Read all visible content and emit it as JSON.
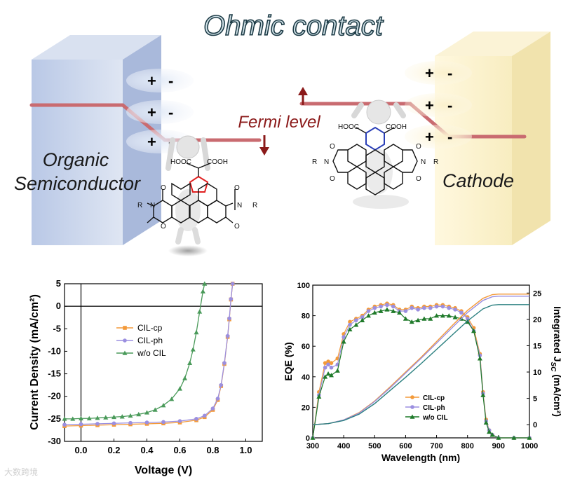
{
  "schematic": {
    "title": "Ohmic contact",
    "fermi_label": "Fermi level",
    "left_block_label_1": "Organic",
    "left_block_label_2": "Semiconductor",
    "right_block_label": "Cathode",
    "charge_plus": "+",
    "charge_minus": "-",
    "mol_left": {
      "top_left": "HOOC",
      "top_right": "COOH",
      "r_left": "R",
      "r_right": "R",
      "n": "N",
      "o": "O"
    },
    "mol_right": {
      "top_left": "HOOC",
      "top_right": "COOH",
      "r_left": "R",
      "r_right": "R",
      "n": "N",
      "o": "O"
    },
    "colors": {
      "left_block": "#c5d2e8",
      "right_block": "#fbf2cf",
      "fermi_line": "#c96b70",
      "fermi_text": "#8b1a1a",
      "arrow": "#8b1a1a",
      "highlight_ring": "#e02020"
    }
  },
  "chart_data": [
    {
      "type": "line",
      "xlabel": "Voltage (V)",
      "ylabel": "Current Density (mA/cm²)",
      "xlim": [
        -0.1,
        1.1
      ],
      "ylim": [
        -30,
        5
      ],
      "xticks": [
        "0.0",
        "0.2",
        "0.4",
        "0.6",
        "0.8",
        "1.0"
      ],
      "xtick_values": [
        0,
        0.2,
        0.4,
        0.6,
        0.8,
        1.0
      ],
      "yticks": [
        "5",
        "0",
        "-5",
        "-10",
        "-15",
        "-20",
        "-25",
        "-30"
      ],
      "ytick_values": [
        5,
        0,
        -5,
        -10,
        -15,
        -20,
        -25,
        -30
      ],
      "legend_position": "center-left",
      "series": [
        {
          "name": "CIL-cp",
          "color": "#f39a3a",
          "marker": "square",
          "x": [
            -0.1,
            0.0,
            0.1,
            0.2,
            0.3,
            0.4,
            0.5,
            0.6,
            0.7,
            0.75,
            0.8,
            0.83,
            0.85,
            0.87,
            0.89,
            0.9,
            0.91,
            0.92
          ],
          "y": [
            -26.6,
            -26.5,
            -26.4,
            -26.3,
            -26.2,
            -26.1,
            -26.0,
            -25.8,
            -25.3,
            -24.6,
            -23.0,
            -20.8,
            -17.7,
            -12.8,
            -6.8,
            -2.9,
            1.5,
            5.0
          ]
        },
        {
          "name": "CIL-ph",
          "color": "#9b8fe0",
          "marker": "circle",
          "x": [
            -0.1,
            0.0,
            0.1,
            0.2,
            0.3,
            0.4,
            0.5,
            0.6,
            0.7,
            0.75,
            0.8,
            0.83,
            0.85,
            0.87,
            0.89,
            0.9,
            0.91,
            0.92
          ],
          "y": [
            -26.3,
            -26.2,
            -26.1,
            -26.0,
            -25.9,
            -25.8,
            -25.7,
            -25.5,
            -25.0,
            -24.3,
            -22.7,
            -20.5,
            -17.5,
            -12.6,
            -6.6,
            -2.7,
            1.6,
            5.0
          ]
        },
        {
          "name": "w/o CIL",
          "color": "#4a9a5a",
          "marker": "triangle",
          "x": [
            -0.1,
            -0.05,
            0.0,
            0.05,
            0.1,
            0.15,
            0.2,
            0.25,
            0.3,
            0.35,
            0.4,
            0.45,
            0.5,
            0.55,
            0.6,
            0.63,
            0.66,
            0.68,
            0.7,
            0.72,
            0.74,
            0.75
          ],
          "y": [
            -25.0,
            -25.0,
            -24.9,
            -24.9,
            -24.8,
            -24.7,
            -24.6,
            -24.5,
            -24.3,
            -24.0,
            -23.6,
            -23.0,
            -22.0,
            -20.6,
            -18.3,
            -16.0,
            -12.6,
            -9.6,
            -5.8,
            -1.2,
            3.3,
            5.0
          ]
        }
      ]
    },
    {
      "type": "line",
      "xlabel": "Wavelength (nm)",
      "ylabel_left": "EQE (%)",
      "ylabel_right": "Integrated J",
      "ylabel_right_sub": "SC",
      "ylabel_right_unit": " (mA/cm²)",
      "xlim": [
        300,
        1000
      ],
      "ylim_left": [
        0,
        100
      ],
      "ylim_right": [
        -2.5,
        26.5
      ],
      "xticks": [
        "300",
        "400",
        "500",
        "600",
        "700",
        "800",
        "900",
        "1000"
      ],
      "xtick_values": [
        300,
        400,
        500,
        600,
        700,
        800,
        900,
        1000
      ],
      "yticks_left": [
        "0",
        "20",
        "40",
        "60",
        "80",
        "100"
      ],
      "ytick_values_left": [
        0,
        20,
        40,
        60,
        80,
        100
      ],
      "yticks_right": [
        "0",
        "5",
        "10",
        "15",
        "20",
        "25"
      ],
      "ytick_values_right": [
        0,
        5,
        10,
        15,
        20,
        25
      ],
      "legend_position": "bottom-center",
      "series": [
        {
          "name": "CIL-cp",
          "color": "#f39a3a",
          "marker": "circle",
          "axis": "left",
          "x": [
            300,
            320,
            340,
            350,
            360,
            380,
            400,
            420,
            440,
            460,
            480,
            500,
            520,
            540,
            560,
            580,
            600,
            620,
            640,
            660,
            680,
            700,
            720,
            740,
            760,
            780,
            800,
            820,
            840,
            850,
            860,
            870,
            880,
            900,
            950,
            1000
          ],
          "y": [
            0,
            30,
            49,
            50,
            49,
            52,
            68,
            76,
            78,
            80,
            84,
            86,
            87,
            88,
            87,
            84,
            84,
            86,
            85,
            86,
            86,
            87,
            87,
            86,
            85,
            83,
            79,
            72,
            55,
            30,
            12,
            5,
            2,
            0,
            0,
            0
          ]
        },
        {
          "name": "CIL-ph",
          "color": "#9b8fe0",
          "marker": "circle",
          "axis": "left",
          "x": [
            300,
            320,
            340,
            350,
            360,
            380,
            400,
            420,
            440,
            460,
            480,
            500,
            520,
            540,
            560,
            580,
            600,
            620,
            640,
            660,
            680,
            700,
            720,
            740,
            760,
            780,
            800,
            820,
            840,
            850,
            860,
            870,
            880,
            900,
            950,
            1000
          ],
          "y": [
            0,
            28,
            46,
            48,
            46,
            48,
            66,
            74,
            77,
            79,
            83,
            85,
            86,
            87,
            86,
            83,
            83,
            85,
            84,
            85,
            85,
            86,
            86,
            85,
            84,
            82,
            78,
            70,
            54,
            29,
            11,
            5,
            2,
            0,
            0,
            0
          ]
        },
        {
          "name": "w/o CIL",
          "color": "#1f7a2a",
          "marker": "triangle",
          "axis": "left",
          "x": [
            300,
            320,
            340,
            350,
            360,
            380,
            400,
            420,
            440,
            460,
            480,
            500,
            520,
            540,
            560,
            580,
            600,
            620,
            640,
            660,
            680,
            700,
            720,
            740,
            760,
            780,
            800,
            820,
            840,
            850,
            860,
            870,
            880,
            900,
            950,
            1000
          ],
          "y": [
            0,
            27,
            40,
            42,
            41,
            44,
            63,
            71,
            74,
            77,
            80,
            82,
            83,
            84,
            83,
            82,
            78,
            76,
            77,
            78,
            78,
            80,
            80,
            80,
            79,
            78,
            76,
            70,
            52,
            28,
            10,
            4,
            2,
            0,
            0,
            0
          ]
        },
        {
          "name": "",
          "color": "#f39a3a",
          "marker": "none",
          "axis": "right",
          "x": [
            300,
            350,
            400,
            450,
            500,
            550,
            600,
            650,
            700,
            750,
            800,
            850,
            880,
            900,
            950,
            1000
          ],
          "y": [
            0,
            0.2,
            0.9,
            2.3,
            4.5,
            7.2,
            10.0,
            12.8,
            15.8,
            18.8,
            21.7,
            24.0,
            24.7,
            24.8,
            24.8,
            24.8
          ]
        },
        {
          "name": "",
          "color": "#9b8fe0",
          "marker": "none",
          "axis": "right",
          "x": [
            300,
            350,
            400,
            450,
            500,
            550,
            600,
            650,
            700,
            750,
            800,
            850,
            880,
            900,
            950,
            1000
          ],
          "y": [
            0,
            0.2,
            0.9,
            2.2,
            4.4,
            7.0,
            9.8,
            12.6,
            15.5,
            18.4,
            21.3,
            23.6,
            24.3,
            24.4,
            24.4,
            24.4
          ]
        },
        {
          "name": "",
          "color": "#2c8080",
          "marker": "none",
          "axis": "right",
          "x": [
            300,
            350,
            400,
            450,
            500,
            550,
            600,
            650,
            700,
            750,
            800,
            850,
            880,
            900,
            950,
            1000
          ],
          "y": [
            0,
            0.2,
            0.8,
            2.0,
            4.0,
            6.5,
            9.0,
            11.6,
            14.3,
            17.0,
            19.7,
            22.0,
            22.7,
            22.8,
            22.8,
            22.8
          ]
        }
      ]
    }
  ],
  "watermark": "大数跨境"
}
